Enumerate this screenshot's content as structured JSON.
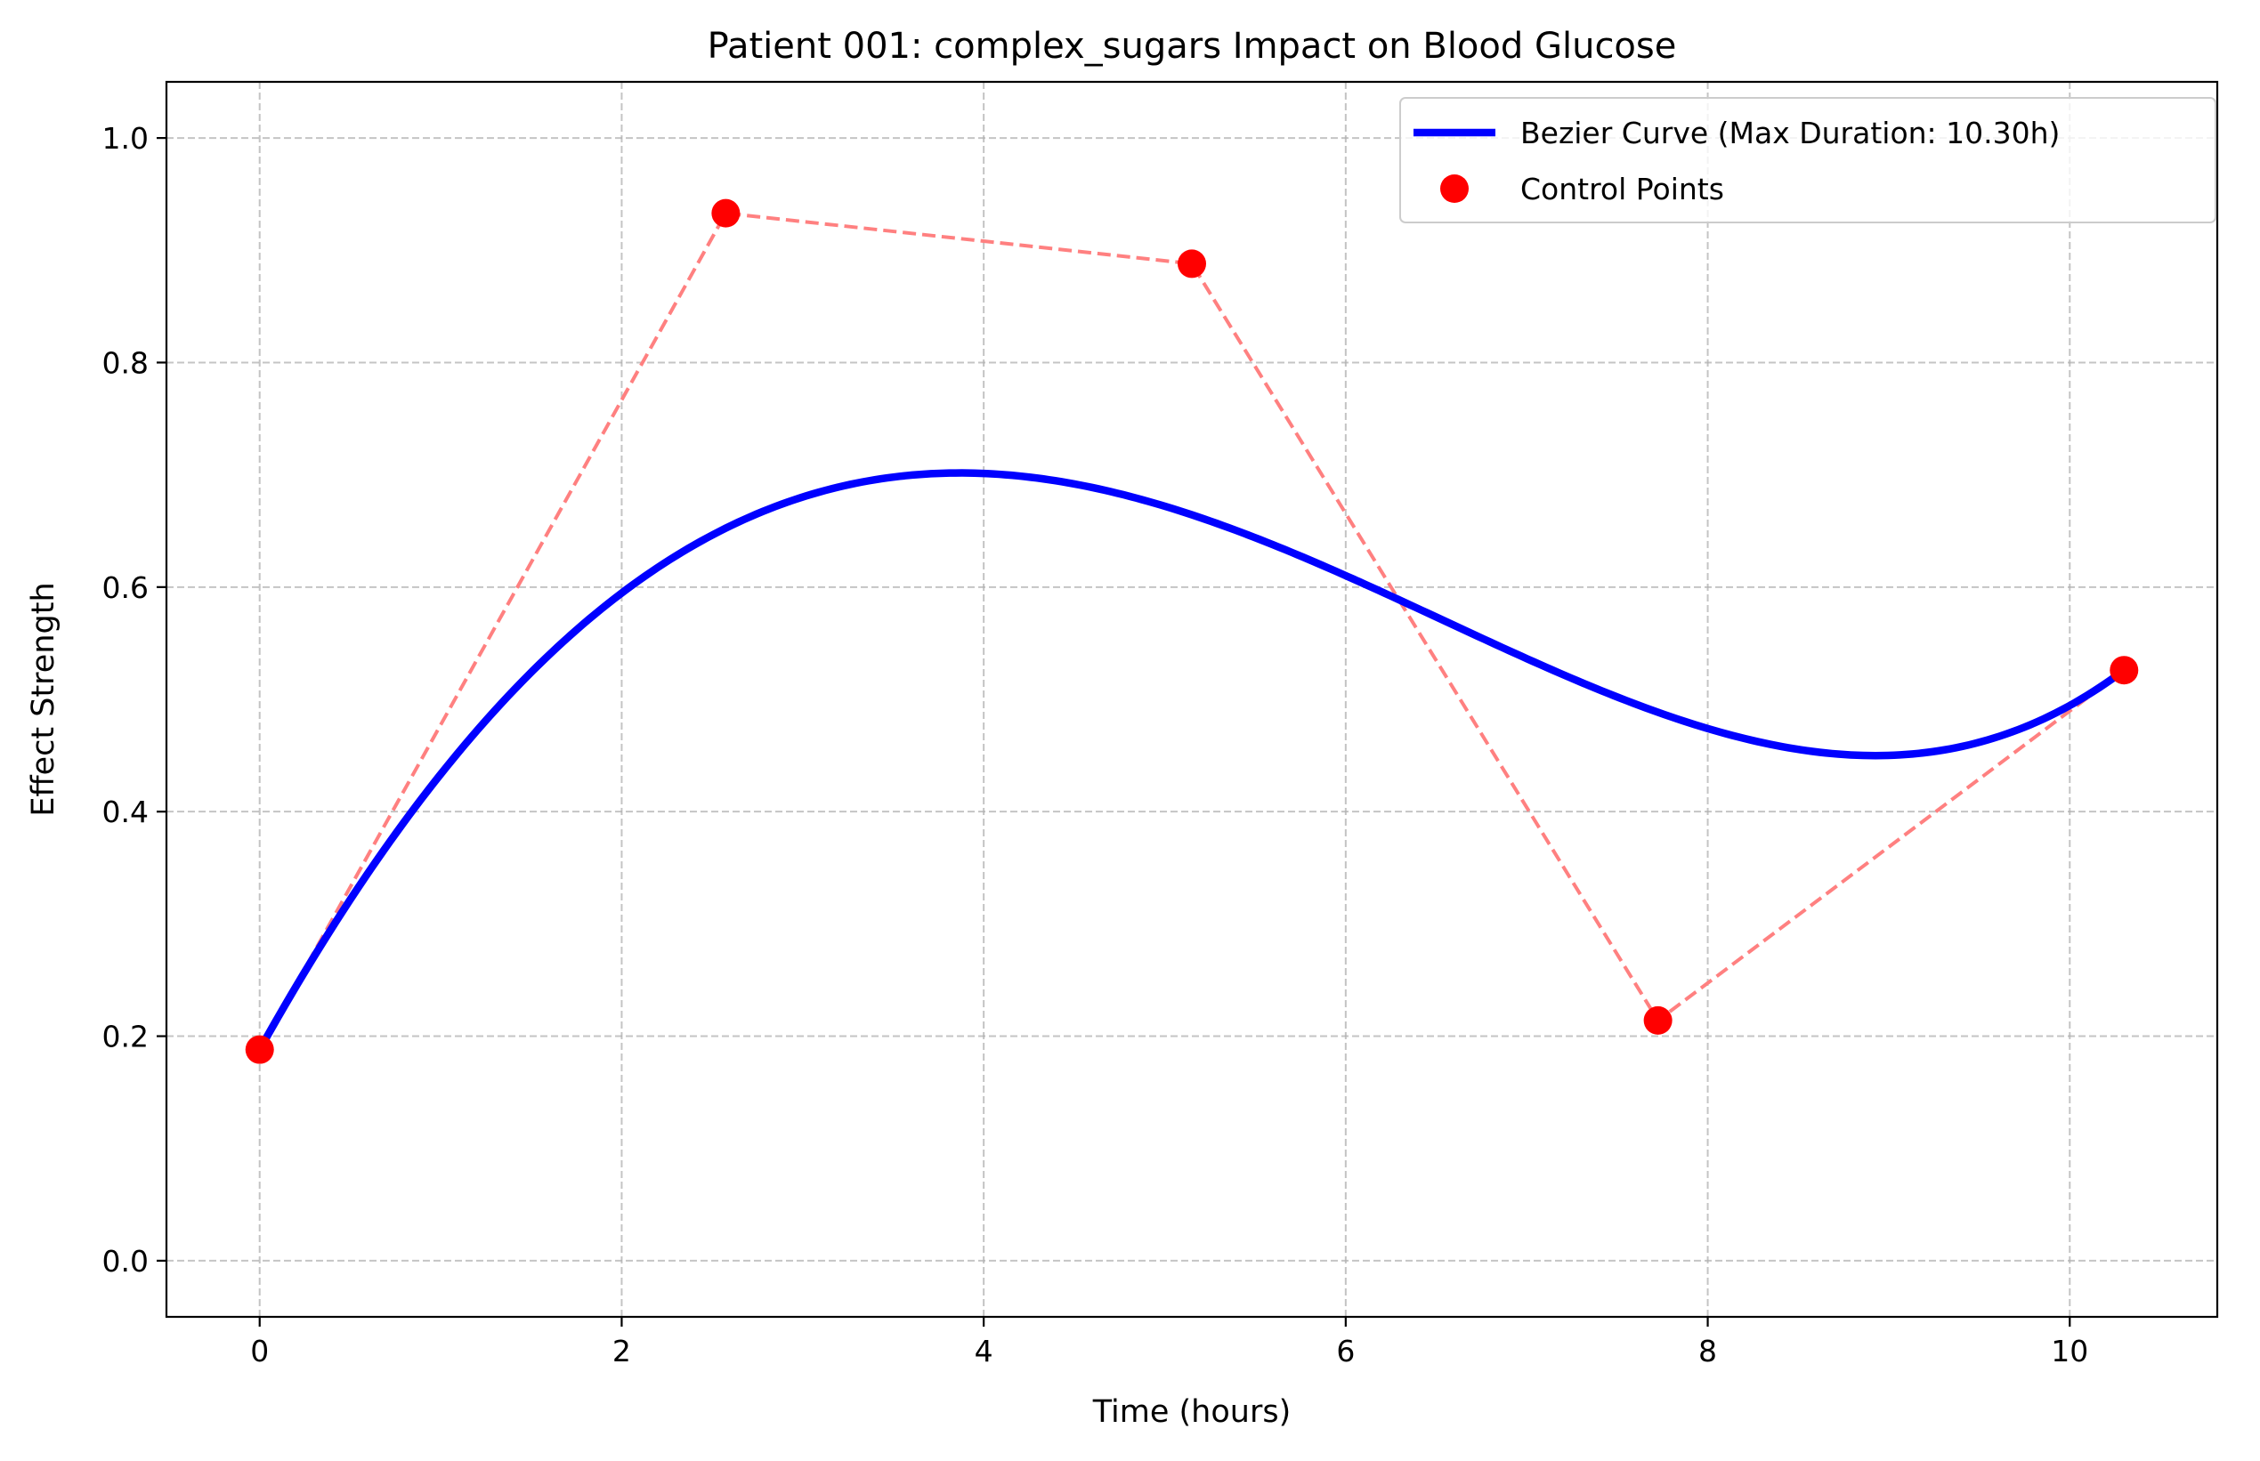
{
  "chart_data": {
    "type": "line",
    "title": "Patient 001: complex_sugars Impact on Blood Glucose",
    "xlabel": "Time (hours)",
    "ylabel": "Effect Strength",
    "xlim": [
      -0.515,
      10.815
    ],
    "ylim": [
      -0.05,
      1.05
    ],
    "x_ticks": [
      0,
      2,
      4,
      6,
      8,
      10
    ],
    "y_ticks": [
      0.0,
      0.2,
      0.4,
      0.6,
      0.8,
      1.0
    ],
    "x_tick_labels": [
      "0",
      "2",
      "4",
      "6",
      "8",
      "10"
    ],
    "y_tick_labels": [
      "0.0",
      "0.2",
      "0.4",
      "0.6",
      "0.8",
      "1.0"
    ],
    "grid": true,
    "legend_position": "top-right",
    "series": [
      {
        "name": "Bezier Curve (Max Duration: 10.30h)",
        "kind": "bezier-curve",
        "color": "#0000ff",
        "style": "solid"
      },
      {
        "name": "Control Points",
        "kind": "control-points",
        "color": "#ff0000",
        "polygon_color": "#ff8080",
        "polygon_style": "dashed",
        "points": [
          {
            "x": 0.0,
            "y": 0.188
          },
          {
            "x": 2.575,
            "y": 0.933
          },
          {
            "x": 5.15,
            "y": 0.888
          },
          {
            "x": 7.725,
            "y": 0.214
          },
          {
            "x": 10.3,
            "y": 0.526
          }
        ]
      }
    ]
  }
}
